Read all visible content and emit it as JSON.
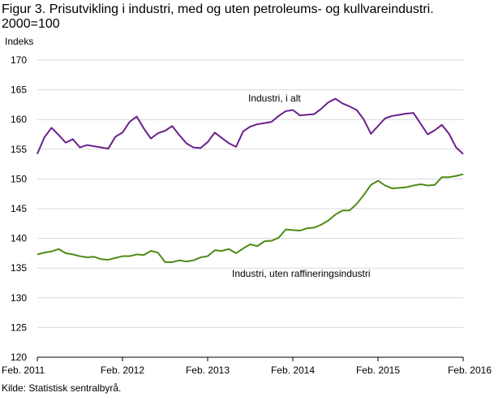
{
  "figure": {
    "title": "Figur 3. Prisutvikling i industri, med og uten petroleums- og kullvareindustri. 2000=100",
    "source": "Kilde: Statistisk sentralbyrå."
  },
  "chart_data": {
    "type": "line",
    "ylabel": "Indeks",
    "xlabel": "",
    "ylim": [
      120,
      170
    ],
    "yticks": [
      120,
      125,
      130,
      135,
      140,
      145,
      150,
      155,
      160,
      165,
      170
    ],
    "xticks": [
      "Feb. 2011",
      "Feb. 2012",
      "Feb. 2013",
      "Feb. 2014",
      "Feb. 2015",
      "Feb. 2016"
    ],
    "x": [
      "2011-02",
      "2011-03",
      "2011-04",
      "2011-05",
      "2011-06",
      "2011-07",
      "2011-08",
      "2011-09",
      "2011-10",
      "2011-11",
      "2011-12",
      "2012-01",
      "2012-02",
      "2012-03",
      "2012-04",
      "2012-05",
      "2012-06",
      "2012-07",
      "2012-08",
      "2012-09",
      "2012-10",
      "2012-11",
      "2012-12",
      "2013-01",
      "2013-02",
      "2013-03",
      "2013-04",
      "2013-05",
      "2013-06",
      "2013-07",
      "2013-08",
      "2013-09",
      "2013-10",
      "2013-11",
      "2013-12",
      "2014-01",
      "2014-02",
      "2014-03",
      "2014-04",
      "2014-05",
      "2014-06",
      "2014-07",
      "2014-08",
      "2014-09",
      "2014-10",
      "2014-11",
      "2014-12",
      "2015-01",
      "2015-02",
      "2015-03",
      "2015-04",
      "2015-05",
      "2015-06",
      "2015-07",
      "2015-08",
      "2015-09",
      "2015-10",
      "2015-11",
      "2015-12",
      "2016-01",
      "2016-02"
    ],
    "grid": "horizontal",
    "series": [
      {
        "name": "Industri, i alt",
        "color": "#6a1f8a",
        "values": [
          154.2,
          157.0,
          158.6,
          157.4,
          156.1,
          156.7,
          155.3,
          155.7,
          155.5,
          155.3,
          155.1,
          157.1,
          157.8,
          159.6,
          160.5,
          158.5,
          156.8,
          157.7,
          158.1,
          158.9,
          157.4,
          156.0,
          155.3,
          155.2,
          156.2,
          157.8,
          156.9,
          156.0,
          155.4,
          158.0,
          158.8,
          159.2,
          159.4,
          159.6,
          160.6,
          161.4,
          161.6,
          160.7,
          160.8,
          160.9,
          161.8,
          162.9,
          163.5,
          162.7,
          162.2,
          161.6,
          160.0,
          157.6,
          158.9,
          160.2,
          160.6,
          160.8,
          161.0,
          161.1,
          159.3,
          157.5,
          158.2,
          159.1,
          157.6,
          155.3,
          154.2
        ]
      },
      {
        "name": "Industri, uten raffineringsindustri",
        "color": "#4f8a16",
        "values": [
          137.3,
          137.6,
          137.8,
          138.2,
          137.5,
          137.3,
          137.0,
          136.8,
          136.9,
          136.5,
          136.4,
          136.7,
          137.0,
          137.0,
          137.3,
          137.2,
          137.9,
          137.6,
          136.0,
          136.0,
          136.3,
          136.1,
          136.3,
          136.8,
          137.0,
          138.0,
          137.9,
          138.2,
          137.5,
          138.3,
          139.0,
          138.7,
          139.5,
          139.6,
          140.1,
          141.5,
          141.4,
          141.3,
          141.7,
          141.8,
          142.3,
          143.0,
          144.0,
          144.7,
          144.7,
          145.8,
          147.3,
          149.0,
          149.7,
          148.9,
          148.4,
          148.5,
          148.6,
          148.9,
          149.1,
          148.9,
          149.0,
          150.3,
          150.3,
          150.5,
          150.8
        ]
      }
    ]
  }
}
